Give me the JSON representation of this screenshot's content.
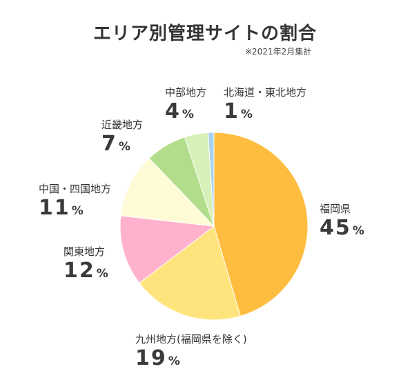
{
  "title": "エリア別管理サイトの割合",
  "note": "※2021年2月集計",
  "chart_data": {
    "type": "pie",
    "title": "エリア別管理サイトの割合",
    "unit": "%",
    "slices": [
      {
        "label": "福岡県",
        "value": 45,
        "color": "#FFBD3F"
      },
      {
        "label": "九州地方(福岡県を除く)",
        "value": 19,
        "color": "#FFE47D"
      },
      {
        "label": "関東地方",
        "value": 12,
        "color": "#FFB1CE"
      },
      {
        "label": "中国・四国地方",
        "value": 11,
        "color": "#FFFBD6"
      },
      {
        "label": "近畿地方",
        "value": 7,
        "color": "#B2DE8B"
      },
      {
        "label": "中部地方",
        "value": 4,
        "color": "#D7F0B8"
      },
      {
        "label": "北海道・東北地方",
        "value": 1,
        "color": "#A9D3EC"
      }
    ]
  }
}
